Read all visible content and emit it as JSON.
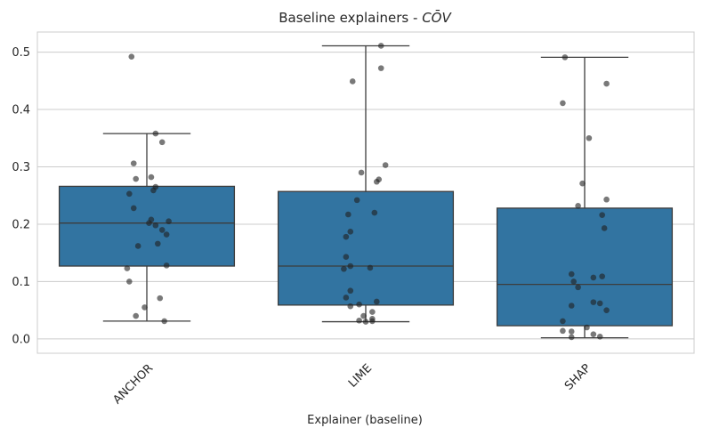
{
  "chart_data": {
    "type": "box",
    "title_prefix": "Baseline explainers - ",
    "title_math": "CŌV",
    "xlabel": "Explainer (baseline)",
    "ylabel": "",
    "ylim": [
      -0.025,
      0.535
    ],
    "yticks": [
      "0.0",
      "0.1",
      "0.2",
      "0.3",
      "0.4",
      "0.5"
    ],
    "ytick_values": [
      0.0,
      0.1,
      0.2,
      0.3,
      0.4,
      0.5
    ],
    "grid": true,
    "box_color": "#3274a1",
    "line_color": "#3d3d3d",
    "point_color": "#1f1f1f",
    "categories": [
      "ANCHOR",
      "LIME",
      "SHAP"
    ],
    "boxes": [
      {
        "name": "ANCHOR",
        "whisker_low": 0.031,
        "q1": 0.127,
        "median": 0.202,
        "q3": 0.266,
        "whisker_high": 0.358
      },
      {
        "name": "LIME",
        "whisker_low": 0.03,
        "q1": 0.059,
        "median": 0.127,
        "q3": 0.257,
        "whisker_high": 0.511
      },
      {
        "name": "SHAP",
        "whisker_low": 0.002,
        "q1": 0.023,
        "median": 0.095,
        "q3": 0.228,
        "whisker_high": 0.491
      }
    ],
    "points": [
      [
        [
          -0.07,
          0.492
        ],
        [
          0.04,
          0.358
        ],
        [
          0.07,
          0.343
        ],
        [
          -0.06,
          0.306
        ],
        [
          0.02,
          0.282
        ],
        [
          -0.05,
          0.279
        ],
        [
          0.04,
          0.265
        ],
        [
          0.03,
          0.259
        ],
        [
          -0.08,
          0.253
        ],
        [
          -0.06,
          0.228
        ],
        [
          0.02,
          0.208
        ],
        [
          0.1,
          0.205
        ],
        [
          0.01,
          0.202
        ],
        [
          0.04,
          0.198
        ],
        [
          0.07,
          0.19
        ],
        [
          0.09,
          0.182
        ],
        [
          0.05,
          0.166
        ],
        [
          -0.04,
          0.162
        ],
        [
          0.09,
          0.128
        ],
        [
          -0.09,
          0.123
        ],
        [
          -0.08,
          0.1
        ],
        [
          0.06,
          0.071
        ],
        [
          -0.01,
          0.055
        ],
        [
          -0.05,
          0.04
        ],
        [
          0.08,
          0.031
        ]
      ],
      [
        [
          0.07,
          0.511
        ],
        [
          0.07,
          0.472
        ],
        [
          -0.06,
          0.449
        ],
        [
          0.09,
          0.303
        ],
        [
          -0.02,
          0.29
        ],
        [
          0.06,
          0.278
        ],
        [
          0.05,
          0.274
        ],
        [
          -0.04,
          0.242
        ],
        [
          0.04,
          0.22
        ],
        [
          -0.08,
          0.217
        ],
        [
          -0.07,
          0.187
        ],
        [
          -0.09,
          0.178
        ],
        [
          -0.09,
          0.143
        ],
        [
          -0.07,
          0.127
        ],
        [
          0.02,
          0.124
        ],
        [
          -0.1,
          0.122
        ],
        [
          -0.07,
          0.084
        ],
        [
          -0.09,
          0.072
        ],
        [
          0.05,
          0.065
        ],
        [
          -0.03,
          0.06
        ],
        [
          -0.07,
          0.057
        ],
        [
          0.03,
          0.047
        ],
        [
          -0.01,
          0.04
        ],
        [
          0.03,
          0.035
        ],
        [
          -0.03,
          0.032
        ],
        [
          0.0,
          0.03
        ],
        [
          0.03,
          0.031
        ]
      ],
      [
        [
          -0.09,
          0.491
        ],
        [
          0.1,
          0.445
        ],
        [
          -0.1,
          0.411
        ],
        [
          0.02,
          0.35
        ],
        [
          -0.01,
          0.271
        ],
        [
          0.1,
          0.243
        ],
        [
          -0.03,
          0.232
        ],
        [
          0.08,
          0.216
        ],
        [
          0.09,
          0.193
        ],
        [
          -0.06,
          0.113
        ],
        [
          0.08,
          0.109
        ],
        [
          0.04,
          0.107
        ],
        [
          -0.05,
          0.1
        ],
        [
          -0.03,
          0.09
        ],
        [
          0.04,
          0.064
        ],
        [
          0.07,
          0.062
        ],
        [
          -0.06,
          0.058
        ],
        [
          0.1,
          0.05
        ],
        [
          -0.1,
          0.031
        ],
        [
          0.01,
          0.02
        ],
        [
          -0.1,
          0.014
        ],
        [
          -0.06,
          0.013
        ],
        [
          0.04,
          0.008
        ],
        [
          -0.06,
          0.003
        ],
        [
          0.07,
          0.004
        ]
      ]
    ]
  }
}
